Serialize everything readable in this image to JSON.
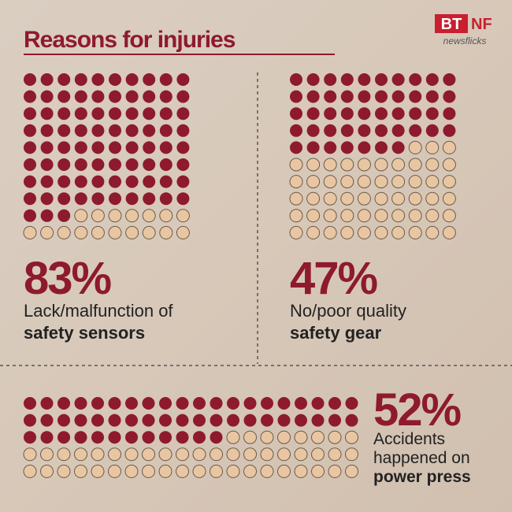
{
  "header": {
    "title": "Reasons for injuries",
    "logo_left": "BT",
    "logo_right": "NF",
    "logo_sub": "newsflicks"
  },
  "chart_data": [
    {
      "type": "waffle",
      "value": 83,
      "value_label": "83%",
      "total": 100,
      "columns": 10,
      "color": "#8e1a2e",
      "empty_color": "#e9c6a2",
      "text": "Lack/malfunction of",
      "text_bold": "safety sensors"
    },
    {
      "type": "waffle",
      "value": 47,
      "value_label": "47%",
      "total": 100,
      "columns": 10,
      "color": "#8e1a2e",
      "empty_color": "#e9c6a2",
      "text": "No/poor quality",
      "text_bold": "safety gear"
    },
    {
      "type": "waffle",
      "value": 52,
      "value_label": "52%",
      "total": 100,
      "columns": 20,
      "color": "#8e1a2e",
      "empty_color": "#e9c6a2",
      "text": "Accidents happened on",
      "text_bold": "power press"
    }
  ]
}
